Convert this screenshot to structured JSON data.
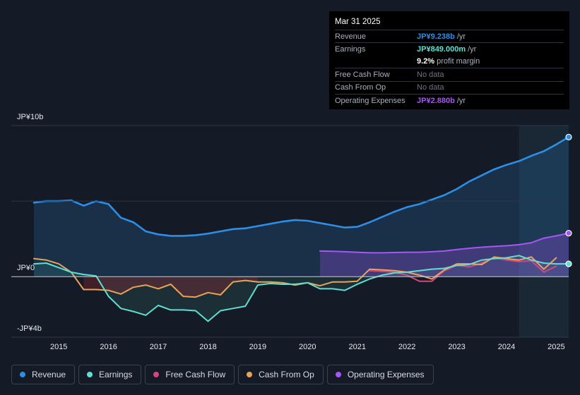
{
  "chart_data": {
    "type": "area",
    "ylim": [
      -4,
      10
    ],
    "xlim": [
      2014.3,
      2025.25
    ],
    "y_ticks": [
      {
        "label": "JP¥10b",
        "value": 10
      },
      {
        "label": "JP¥0",
        "value": 0
      },
      {
        "label": "-JP¥4b",
        "value": -4
      }
    ],
    "x_ticks": [
      "2015",
      "2016",
      "2017",
      "2018",
      "2019",
      "2020",
      "2021",
      "2022",
      "2023",
      "2024",
      "2025"
    ],
    "forecast_band_start": 2024.25,
    "series": [
      {
        "name": "Revenue",
        "color": "#2d8ee5",
        "fill": true,
        "points": [
          [
            2014.5,
            4.9
          ],
          [
            2014.75,
            5.0
          ],
          [
            2015.0,
            5.0
          ],
          [
            2015.25,
            5.05
          ],
          [
            2015.5,
            4.7
          ],
          [
            2015.75,
            5.0
          ],
          [
            2016.0,
            4.8
          ],
          [
            2016.25,
            3.9
          ],
          [
            2016.5,
            3.6
          ],
          [
            2016.75,
            3.0
          ],
          [
            2017.0,
            2.8
          ],
          [
            2017.25,
            2.7
          ],
          [
            2017.5,
            2.7
          ],
          [
            2017.75,
            2.75
          ],
          [
            2018.0,
            2.85
          ],
          [
            2018.25,
            3.0
          ],
          [
            2018.5,
            3.15
          ],
          [
            2018.75,
            3.2
          ],
          [
            2019.0,
            3.35
          ],
          [
            2019.25,
            3.5
          ],
          [
            2019.5,
            3.65
          ],
          [
            2019.75,
            3.75
          ],
          [
            2020.0,
            3.7
          ],
          [
            2020.25,
            3.55
          ],
          [
            2020.5,
            3.4
          ],
          [
            2020.75,
            3.25
          ],
          [
            2021.0,
            3.3
          ],
          [
            2021.25,
            3.6
          ],
          [
            2021.5,
            3.95
          ],
          [
            2021.75,
            4.3
          ],
          [
            2022.0,
            4.6
          ],
          [
            2022.25,
            4.8
          ],
          [
            2022.5,
            5.1
          ],
          [
            2022.75,
            5.4
          ],
          [
            2023.0,
            5.8
          ],
          [
            2023.25,
            6.3
          ],
          [
            2023.5,
            6.7
          ],
          [
            2023.75,
            7.1
          ],
          [
            2024.0,
            7.4
          ],
          [
            2024.25,
            7.65
          ],
          [
            2024.5,
            8.0
          ],
          [
            2024.75,
            8.3
          ],
          [
            2025.0,
            8.75
          ],
          [
            2025.25,
            9.238
          ]
        ]
      },
      {
        "name": "Earnings",
        "color": "#5fe0cf",
        "fill": true,
        "points": [
          [
            2014.5,
            0.85
          ],
          [
            2014.75,
            0.9
          ],
          [
            2015.0,
            0.6
          ],
          [
            2015.25,
            0.3
          ],
          [
            2015.5,
            0.15
          ],
          [
            2015.75,
            0.05
          ],
          [
            2016.0,
            -1.3
          ],
          [
            2016.25,
            -2.1
          ],
          [
            2016.5,
            -2.3
          ],
          [
            2016.75,
            -2.55
          ],
          [
            2017.0,
            -1.9
          ],
          [
            2017.25,
            -2.2
          ],
          [
            2017.5,
            -2.2
          ],
          [
            2017.75,
            -2.25
          ],
          [
            2018.0,
            -2.95
          ],
          [
            2018.25,
            -2.25
          ],
          [
            2018.5,
            -2.1
          ],
          [
            2018.75,
            -1.95
          ],
          [
            2019.0,
            -0.55
          ],
          [
            2019.25,
            -0.45
          ],
          [
            2019.5,
            -0.5
          ],
          [
            2019.75,
            -0.5
          ],
          [
            2020.0,
            -0.4
          ],
          [
            2020.25,
            -0.8
          ],
          [
            2020.5,
            -0.8
          ],
          [
            2020.75,
            -0.9
          ],
          [
            2021.0,
            -0.5
          ],
          [
            2021.25,
            -0.15
          ],
          [
            2021.5,
            0.1
          ],
          [
            2021.75,
            0.25
          ],
          [
            2022.0,
            0.3
          ],
          [
            2022.25,
            0.4
          ],
          [
            2022.5,
            0.5
          ],
          [
            2022.75,
            0.55
          ],
          [
            2023.0,
            0.75
          ],
          [
            2023.25,
            0.8
          ],
          [
            2023.5,
            1.1
          ],
          [
            2023.75,
            1.2
          ],
          [
            2024.0,
            1.25
          ],
          [
            2024.25,
            1.4
          ],
          [
            2024.5,
            1.1
          ],
          [
            2024.75,
            0.9
          ],
          [
            2025.0,
            0.85
          ],
          [
            2025.25,
            0.849
          ]
        ]
      },
      {
        "name": "Free Cash Flow",
        "color": "#d4457f",
        "fill": false,
        "points": [
          [
            2021.25,
            0.4
          ],
          [
            2021.5,
            0.35
          ],
          [
            2021.75,
            0.3
          ],
          [
            2022.0,
            0.1
          ],
          [
            2022.25,
            -0.3
          ],
          [
            2022.5,
            -0.3
          ],
          [
            2022.75,
            0.4
          ],
          [
            2023.0,
            0.75
          ],
          [
            2023.25,
            0.65
          ],
          [
            2023.5,
            0.9
          ],
          [
            2023.75,
            1.25
          ],
          [
            2024.0,
            1.1
          ],
          [
            2024.25,
            1.0
          ],
          [
            2024.5,
            1.05
          ],
          [
            2024.75,
            0.3
          ],
          [
            2025.0,
            0.7
          ]
        ]
      },
      {
        "name": "Cash From Op",
        "color": "#e8a35a",
        "fill": false,
        "points": [
          [
            2014.5,
            1.2
          ],
          [
            2014.75,
            1.1
          ],
          [
            2015.0,
            0.85
          ],
          [
            2015.25,
            0.3
          ],
          [
            2015.5,
            -0.85
          ],
          [
            2015.75,
            -0.85
          ],
          [
            2016.0,
            -0.9
          ],
          [
            2016.25,
            -1.15
          ],
          [
            2016.5,
            -0.7
          ],
          [
            2016.75,
            -0.55
          ],
          [
            2017.0,
            -0.8
          ],
          [
            2017.25,
            -0.5
          ],
          [
            2017.5,
            -1.3
          ],
          [
            2017.75,
            -1.35
          ],
          [
            2018.0,
            -1.05
          ],
          [
            2018.25,
            -1.2
          ],
          [
            2018.5,
            -0.35
          ],
          [
            2018.75,
            -0.25
          ],
          [
            2019.0,
            -0.35
          ],
          [
            2019.25,
            -0.35
          ],
          [
            2019.5,
            -0.4
          ],
          [
            2019.75,
            -0.55
          ],
          [
            2020.0,
            -0.4
          ],
          [
            2020.25,
            -0.6
          ],
          [
            2020.5,
            -0.35
          ],
          [
            2020.75,
            -0.35
          ],
          [
            2021.0,
            -0.3
          ],
          [
            2021.25,
            0.5
          ],
          [
            2021.5,
            0.45
          ],
          [
            2021.75,
            0.4
          ],
          [
            2022.0,
            0.3
          ],
          [
            2022.25,
            0.1
          ],
          [
            2022.5,
            -0.15
          ],
          [
            2022.75,
            0.45
          ],
          [
            2023.0,
            0.85
          ],
          [
            2023.25,
            0.85
          ],
          [
            2023.5,
            0.8
          ],
          [
            2023.75,
            1.3
          ],
          [
            2024.0,
            1.2
          ],
          [
            2024.25,
            1.1
          ],
          [
            2024.5,
            1.3
          ],
          [
            2024.75,
            0.5
          ],
          [
            2025.0,
            1.25
          ]
        ]
      },
      {
        "name": "Operating Expenses",
        "color": "#a855f7",
        "fill": true,
        "points": [
          [
            2020.25,
            1.7
          ],
          [
            2020.5,
            1.68
          ],
          [
            2020.75,
            1.65
          ],
          [
            2021.0,
            1.62
          ],
          [
            2021.25,
            1.58
          ],
          [
            2021.5,
            1.58
          ],
          [
            2021.75,
            1.6
          ],
          [
            2022.0,
            1.62
          ],
          [
            2022.25,
            1.62
          ],
          [
            2022.5,
            1.65
          ],
          [
            2022.75,
            1.7
          ],
          [
            2023.0,
            1.8
          ],
          [
            2023.25,
            1.88
          ],
          [
            2023.5,
            1.95
          ],
          [
            2023.75,
            2.0
          ],
          [
            2024.0,
            2.05
          ],
          [
            2024.25,
            2.12
          ],
          [
            2024.5,
            2.25
          ],
          [
            2024.75,
            2.55
          ],
          [
            2025.0,
            2.7
          ],
          [
            2025.25,
            2.88
          ]
        ]
      }
    ]
  },
  "tooltip": {
    "date": "Mar 31 2025",
    "revenue": {
      "label": "Revenue",
      "value": "JP¥9.238b",
      "unit": "/yr",
      "color": "#2d8ee5"
    },
    "earnings": {
      "label": "Earnings",
      "value": "JP¥849.000m",
      "unit": "/yr",
      "color": "#5fe0cf"
    },
    "margin": {
      "value": "9.2%",
      "text": "profit margin"
    },
    "fcf": {
      "label": "Free Cash Flow",
      "value": "No data"
    },
    "cfo": {
      "label": "Cash From Op",
      "value": "No data"
    },
    "opex": {
      "label": "Operating Expenses",
      "value": "JP¥2.880b",
      "unit": "/yr",
      "color": "#a855f7"
    }
  },
  "legend": [
    {
      "label": "Revenue",
      "color": "#2d8ee5"
    },
    {
      "label": "Earnings",
      "color": "#5fe0cf"
    },
    {
      "label": "Free Cash Flow",
      "color": "#d4457f"
    },
    {
      "label": "Cash From Op",
      "color": "#e8a35a"
    },
    {
      "label": "Operating Expenses",
      "color": "#a855f7"
    }
  ]
}
